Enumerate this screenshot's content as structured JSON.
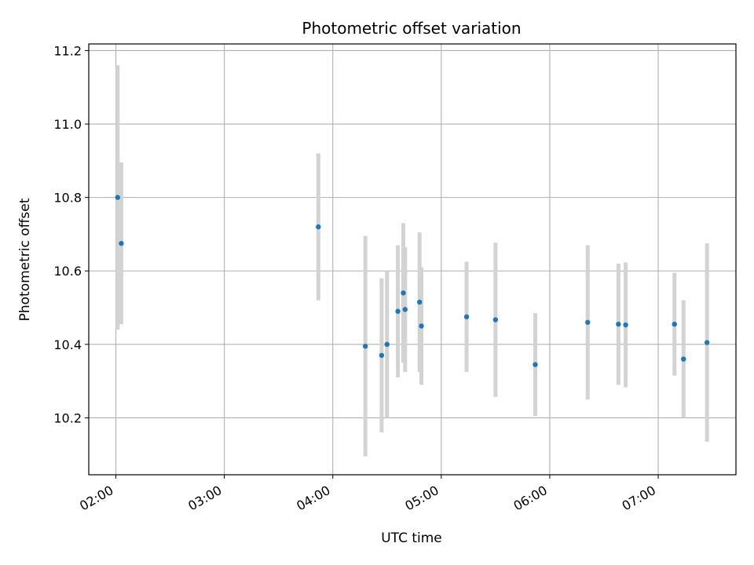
{
  "chart_data": {
    "type": "scatter",
    "title": "Photometric offset variation",
    "xlabel": "UTC time",
    "ylabel": "Photometric offset",
    "grid": true,
    "xlim": [
      "01:45",
      "07:43"
    ],
    "ylim": [
      10.045,
      11.218
    ],
    "x_ticks": [
      "02:00",
      "03:00",
      "04:00",
      "05:00",
      "06:00",
      "07:00"
    ],
    "y_ticks": [
      10.2,
      10.4,
      10.6,
      10.8,
      11.0,
      11.2
    ],
    "y_tick_labels": [
      "10.2",
      "10.4",
      "10.6",
      "10.8",
      "11.0",
      "11.2"
    ],
    "marker_color": "#1f77b4",
    "errorbar_color": "#d3d3d3",
    "points": [
      {
        "time": "02:01",
        "y": 10.8,
        "err": 0.36
      },
      {
        "time": "02:03",
        "y": 10.675,
        "err": 0.22
      },
      {
        "time": "03:52",
        "y": 10.72,
        "err": 0.2
      },
      {
        "time": "04:18",
        "y": 10.395,
        "err": 0.3
      },
      {
        "time": "04:27",
        "y": 10.37,
        "err": 0.21
      },
      {
        "time": "04:30",
        "y": 10.4,
        "err": 0.2
      },
      {
        "time": "04:36",
        "y": 10.49,
        "err": 0.18
      },
      {
        "time": "04:39",
        "y": 10.54,
        "err": 0.19
      },
      {
        "time": "04:40",
        "y": 10.495,
        "err": 0.17
      },
      {
        "time": "04:48",
        "y": 10.515,
        "err": 0.19
      },
      {
        "time": "04:49",
        "y": 10.45,
        "err": 0.16
      },
      {
        "time": "05:14",
        "y": 10.475,
        "err": 0.15
      },
      {
        "time": "05:30",
        "y": 10.467,
        "err": 0.21
      },
      {
        "time": "05:52",
        "y": 10.345,
        "err": 0.14
      },
      {
        "time": "06:21",
        "y": 10.46,
        "err": 0.21
      },
      {
        "time": "06:38",
        "y": 10.455,
        "err": 0.165
      },
      {
        "time": "06:42",
        "y": 10.453,
        "err": 0.17
      },
      {
        "time": "07:09",
        "y": 10.455,
        "err": 0.14
      },
      {
        "time": "07:14",
        "y": 10.36,
        "err": 0.16
      },
      {
        "time": "07:27",
        "y": 10.405,
        "err": 0.27
      }
    ]
  }
}
